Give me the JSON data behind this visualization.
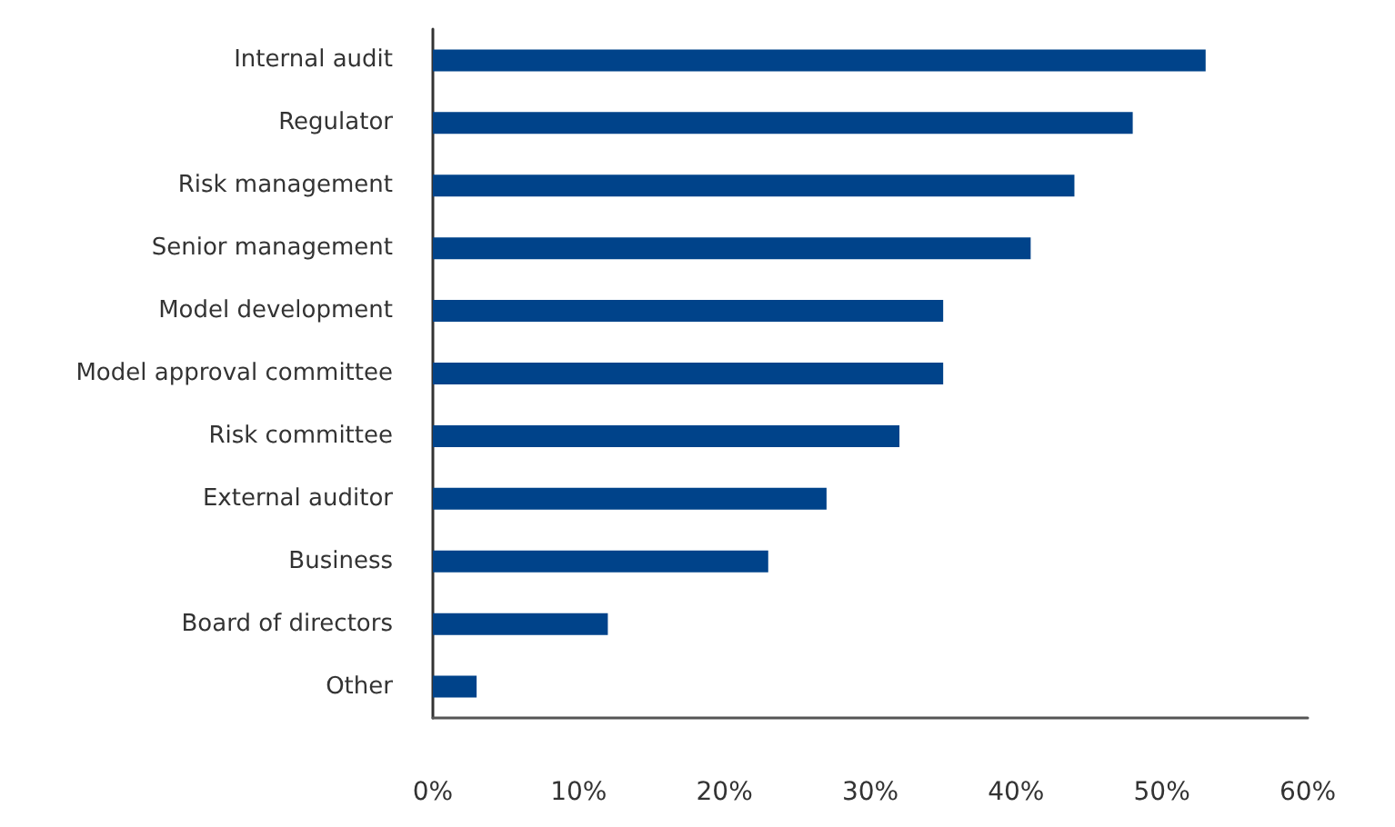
{
  "chart_data": {
    "type": "bar",
    "orientation": "horizontal",
    "categories": [
      "Internal audit",
      "Regulator",
      "Risk management",
      "Senior management",
      "Model development",
      "Model approval committee",
      "Risk committee",
      "External auditor",
      "Business",
      "Board of directors",
      "Other"
    ],
    "values": [
      53,
      48,
      44,
      41,
      35,
      35,
      32,
      27,
      23,
      12,
      3
    ],
    "color": "#00438a",
    "xlim": [
      0,
      60
    ],
    "xticks": [
      {
        "value": 0,
        "label": "0%"
      },
      {
        "value": 10,
        "label": "10%"
      },
      {
        "value": 20,
        "label": "20%"
      },
      {
        "value": 30,
        "label": "30%"
      },
      {
        "value": 40,
        "label": "40%"
      },
      {
        "value": 50,
        "label": "50%"
      },
      {
        "value": 60,
        "label": "60%"
      }
    ],
    "grid": false
  }
}
